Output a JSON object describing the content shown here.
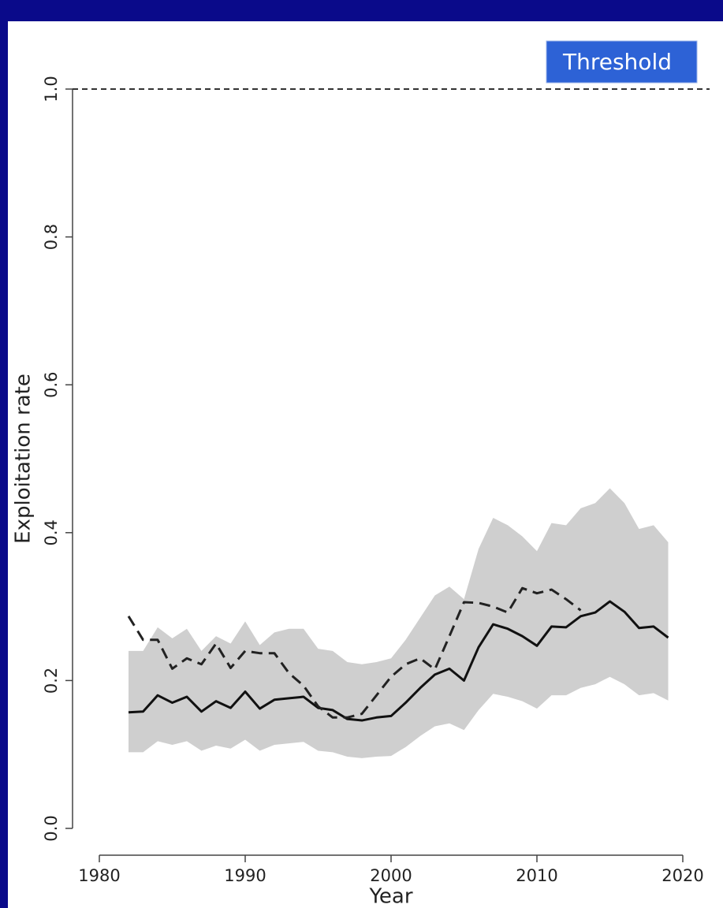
{
  "chart_data": {
    "type": "line",
    "xlabel": "Year",
    "ylabel": "Exploitation rate",
    "x": [
      1982,
      1983,
      1984,
      1985,
      1986,
      1987,
      1988,
      1989,
      1990,
      1991,
      1992,
      1993,
      1994,
      1995,
      1996,
      1997,
      1998,
      1999,
      2000,
      2001,
      2002,
      2003,
      2004,
      2005,
      2006,
      2007,
      2008,
      2009,
      2010,
      2011,
      2012,
      2013,
      2014,
      2015,
      2016,
      2017,
      2018,
      2019
    ],
    "series": [
      {
        "color": "#111111",
        "dash": false,
        "values": [
          0.157,
          0.158,
          0.18,
          0.17,
          0.178,
          0.158,
          0.172,
          0.163,
          0.185,
          0.162,
          0.174,
          0.176,
          0.178,
          0.163,
          0.16,
          0.148,
          0.146,
          0.15,
          0.152,
          0.17,
          0.19,
          0.208,
          0.216,
          0.2,
          0.245,
          0.276,
          0.27,
          0.26,
          0.247,
          0.273,
          0.272,
          0.287,
          0.292,
          0.307,
          0.293,
          0.271,
          0.273,
          0.258
        ]
      },
      {
        "color": "#222222",
        "dash": true,
        "values": [
          0.287,
          0.255,
          0.255,
          0.216,
          0.23,
          0.222,
          0.25,
          0.217,
          0.24,
          0.237,
          0.237,
          0.21,
          0.193,
          0.165,
          0.15,
          0.15,
          0.155,
          0.18,
          0.205,
          0.222,
          0.23,
          0.215,
          0.26,
          0.306,
          0.305,
          0.3,
          0.292,
          0.325,
          0.318,
          0.323,
          0.31,
          0.295,
          null,
          null,
          null,
          null,
          null,
          null
        ]
      }
    ],
    "band": {
      "color": "#cfcfcf",
      "upper": [
        0.24,
        0.24,
        0.272,
        0.257,
        0.27,
        0.24,
        0.26,
        0.25,
        0.28,
        0.248,
        0.265,
        0.27,
        0.27,
        0.243,
        0.24,
        0.225,
        0.222,
        0.225,
        0.23,
        0.255,
        0.285,
        0.315,
        0.327,
        0.31,
        0.378,
        0.42,
        0.41,
        0.395,
        0.375,
        0.413,
        0.41,
        0.433,
        0.44,
        0.46,
        0.44,
        0.405,
        0.41,
        0.387
      ],
      "lower": [
        0.103,
        0.103,
        0.118,
        0.113,
        0.118,
        0.105,
        0.112,
        0.108,
        0.12,
        0.105,
        0.113,
        0.115,
        0.117,
        0.105,
        0.103,
        0.097,
        0.095,
        0.097,
        0.098,
        0.11,
        0.125,
        0.138,
        0.142,
        0.133,
        0.16,
        0.182,
        0.178,
        0.172,
        0.162,
        0.18,
        0.18,
        0.19,
        0.195,
        0.205,
        0.195,
        0.18,
        0.183,
        0.173
      ]
    },
    "threshold": {
      "label": "Threshold",
      "value": 1
    },
    "xlim": [
      1980,
      2020
    ],
    "xticks": [
      1980,
      1990,
      2000,
      2010,
      2020
    ],
    "ylim": [
      0,
      1
    ],
    "yticks": [
      {
        "value": 0,
        "label": "0.0"
      },
      0.2,
      0.4,
      0.6,
      0.8,
      {
        "value": 1,
        "label": "1.0"
      }
    ]
  }
}
